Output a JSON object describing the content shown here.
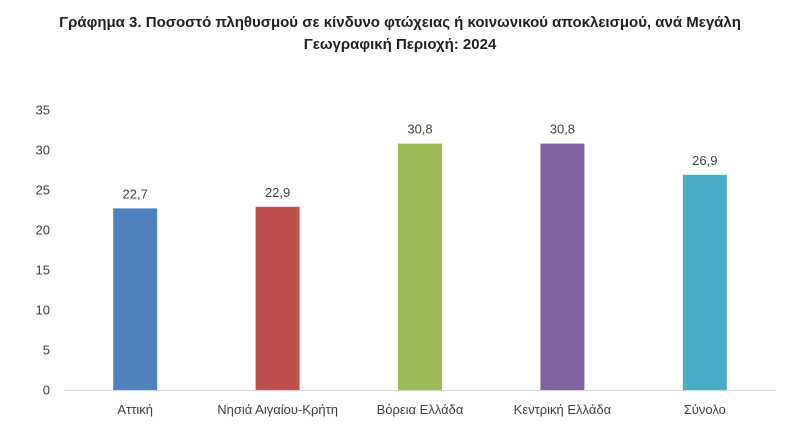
{
  "chart_data": {
    "type": "bar",
    "title_line1": "Γράφημα 3. Ποσοστό πληθυσμού σε κίνδυνο φτώχειας ή κοινωνικού αποκλεισμού, ανά  Μεγάλη",
    "title_line2": "Γεωγραφική Περιοχή: 2024",
    "categories": [
      "Αττική",
      "Νησιά Αιγαίου-Κρήτη",
      "Βόρεια Ελλάδα",
      "Κεντρική Ελλάδα",
      "Σύνολο"
    ],
    "values": [
      22.7,
      22.9,
      30.8,
      30.8,
      26.9
    ],
    "value_labels": [
      "22,7",
      "22,9",
      "30,8",
      "30,8",
      "26,9"
    ],
    "colors": [
      "#4F81BD",
      "#C0504D",
      "#9BBB59",
      "#8064A2",
      "#4BACC6"
    ],
    "y_ticks": [
      "0",
      "5",
      "10",
      "15",
      "20",
      "25",
      "30",
      "35"
    ],
    "ylim": [
      0,
      35
    ],
    "grid": false,
    "legend": "none"
  }
}
